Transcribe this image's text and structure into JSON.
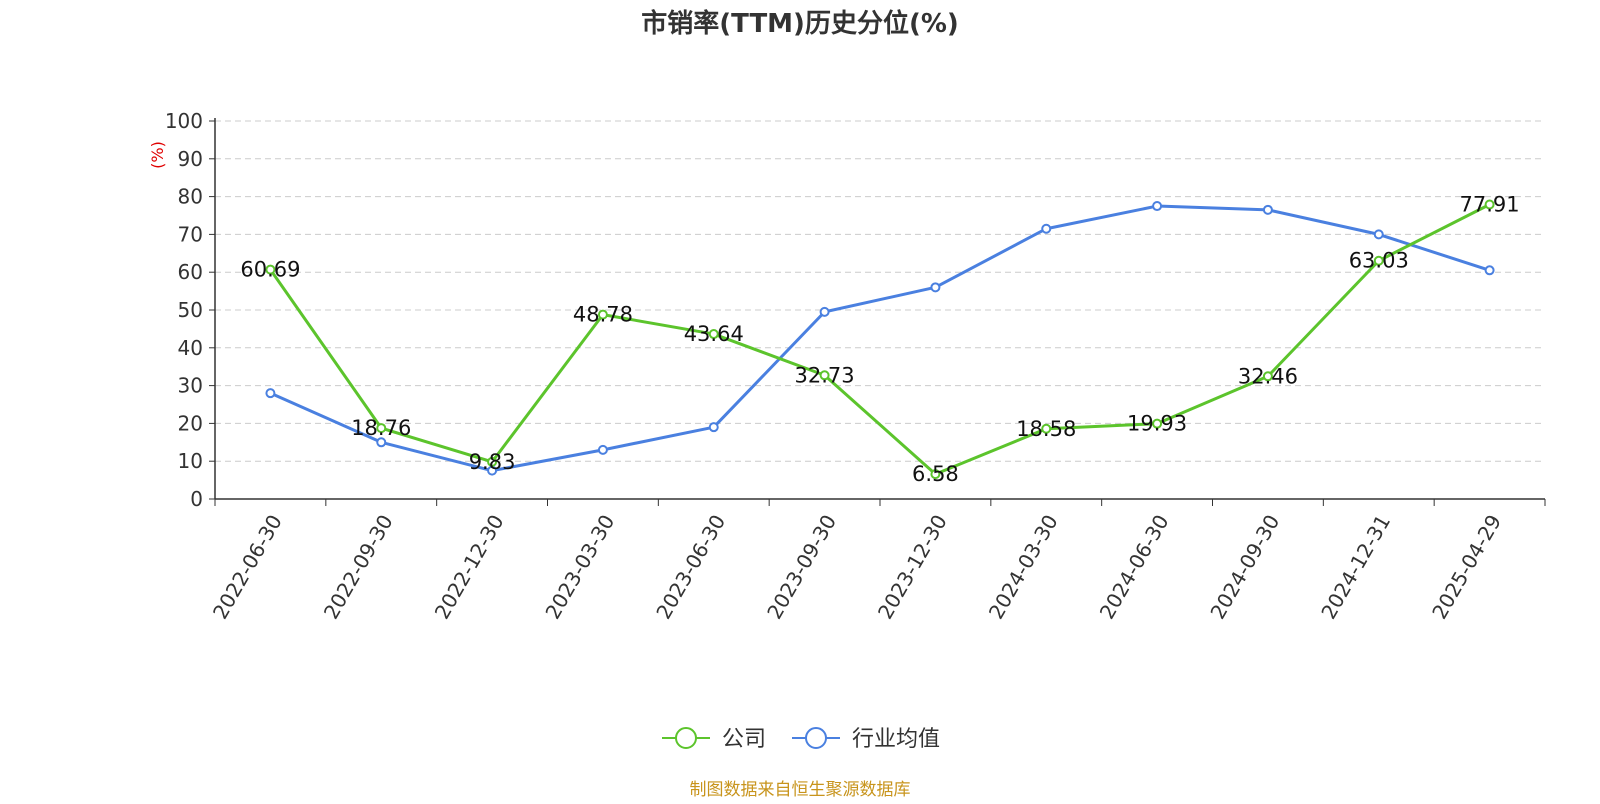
{
  "chart_data": {
    "type": "line",
    "title": "市销率(TTM)历史分位(%)",
    "ylabel": "(%)",
    "ylim": [
      0,
      100
    ],
    "yticks": [
      0,
      10,
      20,
      30,
      40,
      50,
      60,
      70,
      80,
      90,
      100
    ],
    "grid": true,
    "legend_position": "bottom",
    "categories": [
      "2022-06-30",
      "2022-09-30",
      "2022-12-30",
      "2023-03-30",
      "2023-06-30",
      "2023-09-30",
      "2023-12-30",
      "2024-03-30",
      "2024-06-30",
      "2024-09-30",
      "2024-12-31",
      "2025-04-29"
    ],
    "series": [
      {
        "name": "公司",
        "color": "#5cc42c",
        "values": [
          60.69,
          18.76,
          9.83,
          48.78,
          43.64,
          32.73,
          6.58,
          18.58,
          19.93,
          32.46,
          63.03,
          77.91
        ],
        "labels": [
          "60.69",
          "18.76",
          "9.83",
          "48.78",
          "43.64",
          "32.73",
          "6.58",
          "18.58",
          "19.93",
          "32.46",
          "63.03",
          "77.91"
        ]
      },
      {
        "name": "行业均值",
        "color": "#4a80e0",
        "values": [
          28,
          15,
          7.5,
          13,
          19,
          49.5,
          56,
          71.5,
          77.5,
          76.5,
          70,
          60.5
        ]
      }
    ]
  },
  "footer": {
    "source": "制图数据来自恒生聚源数据库"
  }
}
